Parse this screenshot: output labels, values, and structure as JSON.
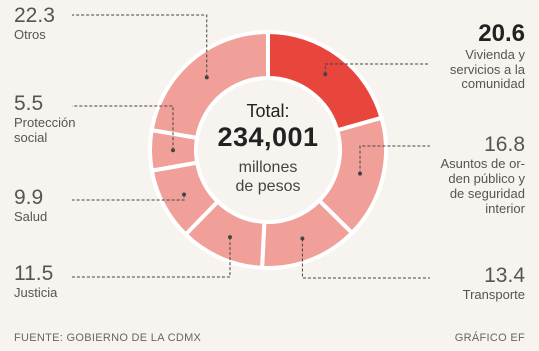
{
  "chart_data": {
    "type": "pie",
    "categories": [
      "Vivienda y servicios a la comunidad",
      "Asuntos de orden público y de seguridad interior",
      "Transporte",
      "Justicia",
      "Salud",
      "Protección social",
      "Otros"
    ],
    "values": [
      20.6,
      16.8,
      13.4,
      11.5,
      9.9,
      5.5,
      22.3
    ],
    "center": {
      "total_label": "Total:",
      "total_value": "234,001",
      "unit_line1": "millones",
      "unit_line2": "de pesos"
    }
  },
  "labels": {
    "otros": {
      "value": "22.3",
      "name": "Otros"
    },
    "proteccion": {
      "value": "5.5",
      "name1": "Protección",
      "name2": "social"
    },
    "salud": {
      "value": "9.9",
      "name": "Salud"
    },
    "justicia": {
      "value": "11.5",
      "name": "Justicia"
    },
    "vivienda": {
      "value": "20.6",
      "name1": "Vivienda y",
      "name2": "servicios a la",
      "name3": "comunidad"
    },
    "asuntos": {
      "value": "16.8",
      "name1": "Asuntos de or-",
      "name2": "den público y",
      "name3": "de seguridad",
      "name4": "interior"
    },
    "transporte": {
      "value": "13.4",
      "name": "Transporte"
    }
  },
  "footer": {
    "source": "FUENTE: GOBIERNO DE LA CDMX",
    "credit": "GRÁFICO EF"
  },
  "colors": {
    "highlight": "#e8453c",
    "segment": "#f0a098",
    "leader": "#444444",
    "background": "#f7f3ee"
  }
}
